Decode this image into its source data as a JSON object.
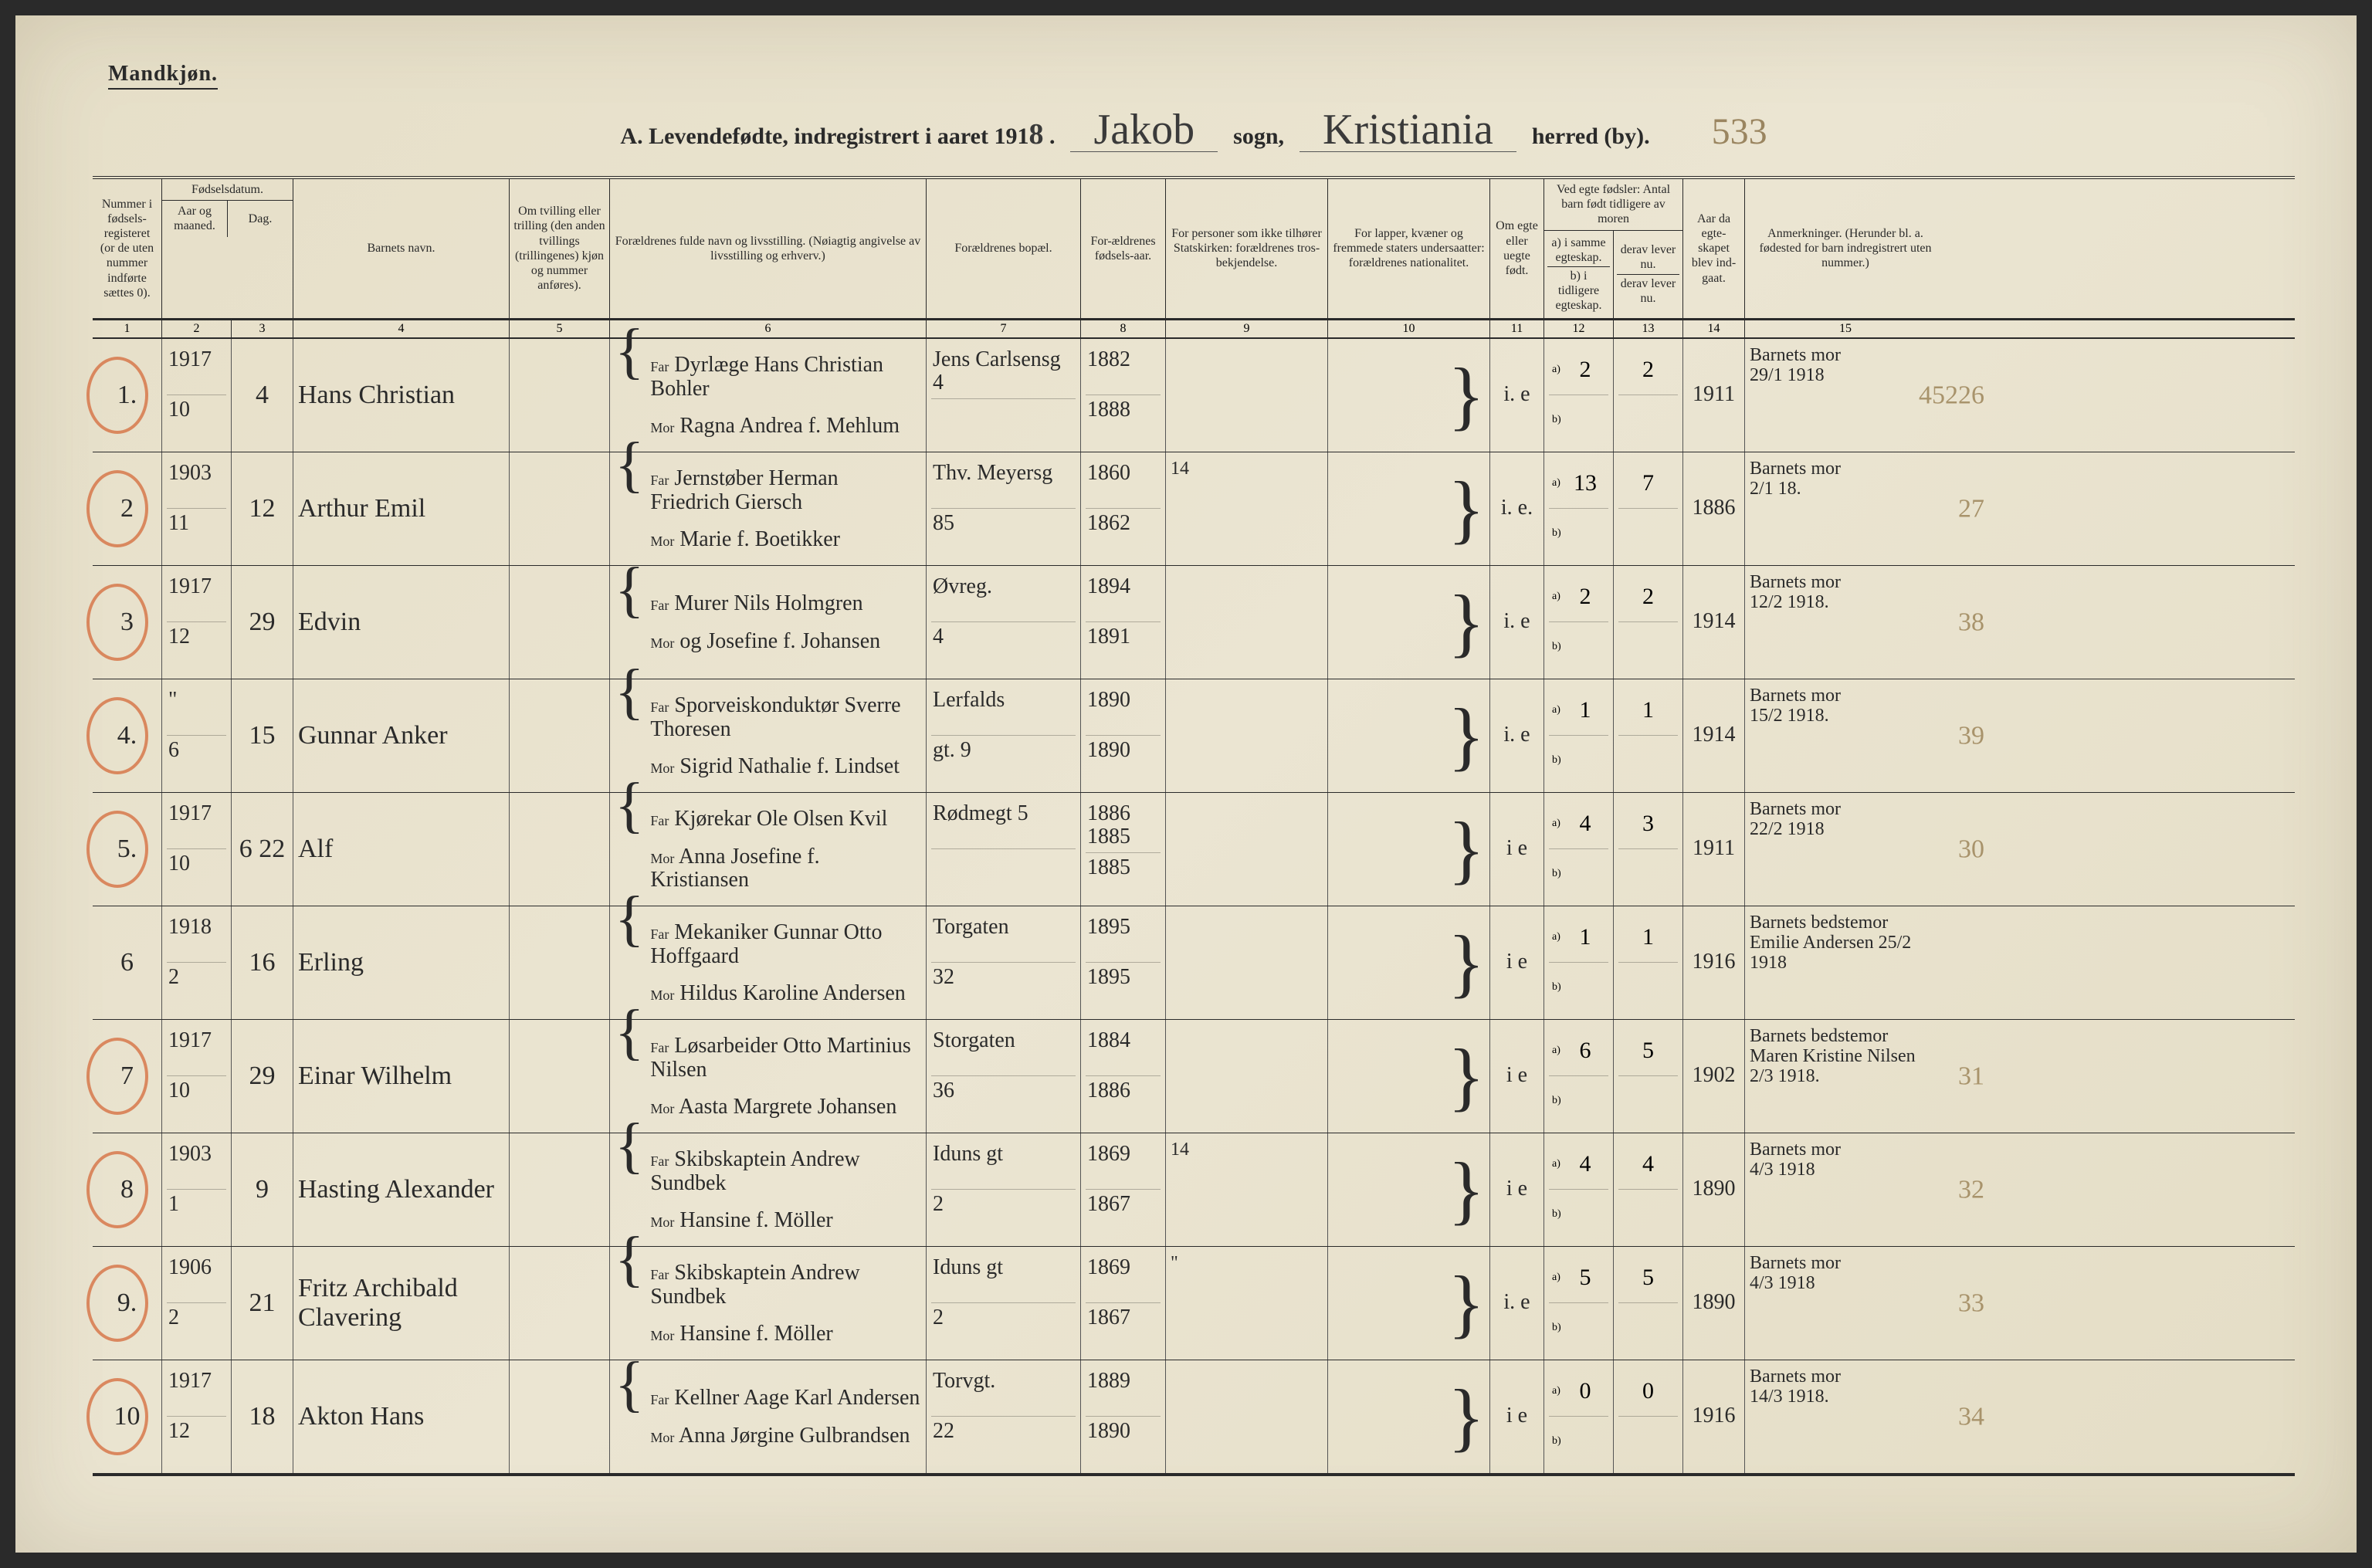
{
  "corner_label": "Mandkjøn.",
  "title": {
    "prefix": "A. Levendefødte, indregistrert i aaret 191",
    "year_suffix": "8",
    "sogn_cursive": "Jakob",
    "sogn_label": "sogn,",
    "herred_cursive": "Kristiania",
    "herred_label": "herred (by).",
    "page_num": "533"
  },
  "colors": {
    "paper": "#e8e2cf",
    "ink": "#2a2a2a",
    "red_circle": "#d46a3a",
    "faded": "#a8936b"
  },
  "headers": {
    "c1": "Nummer i fødsels-registeret (or de uten nummer indførte sættes 0).",
    "c2_group": "Fødselsdatum.",
    "c2a": "Aar og maaned.",
    "c2b": "Dag.",
    "c4": "Barnets navn.",
    "c5": "Om tvilling eller trilling (den anden tvillings (trillingenes) kjøn og nummer anføres).",
    "c6": "Forældrenes fulde navn og livsstilling. (Nøiagtig angivelse av livsstilling og erhverv.)",
    "c7": "Forældrenes bopæl.",
    "c8": "For-ældrenes fødsels-aar.",
    "c9": "For personer som ikke tilhører Statskirken: forældrenes tros-bekjendelse.",
    "c10": "For lapper, kvæner og fremmede staters undersaatter: forældrenes nationalitet.",
    "c11": "Om egte eller uegte født.",
    "c12_group": "Ved egte fødsler: Antal barn født tidligere av moren",
    "c12a": "a) i samme egteskap.",
    "c12b": "b) i tidligere egteskap.",
    "c13a": "derav lever nu.",
    "c13b": "derav lever nu.",
    "c14": "Aar da egte-skapet blev ind-gaat.",
    "c15": "Anmerkninger. (Herunder bl. a. fødested for barn indregistrert uten nummer.)"
  },
  "colnums": [
    "1",
    "2",
    "3",
    "4",
    "5",
    "6",
    "7",
    "8",
    "9",
    "10",
    "11",
    "12",
    "13",
    "14",
    "15"
  ],
  "rows": [
    {
      "num": "1.",
      "circled": true,
      "year_month": [
        "1917",
        "10"
      ],
      "day": "4",
      "name": "Hans Christian",
      "twin": "",
      "far": "Dyrlæge Hans Christian Bohler",
      "mor": "Ragna Andrea f. Mehlum",
      "bopael": [
        "Jens Carlsensg 4",
        ""
      ],
      "birth_years": [
        "1882",
        "1888"
      ],
      "c9": "",
      "c10": "",
      "egte": "i. e",
      "a12": "2",
      "a13": "2",
      "b12": "",
      "b13": "",
      "c14": "1911",
      "remarks": [
        "Barnets mor",
        "29/1 1918"
      ],
      "margin": "45226"
    },
    {
      "num": "2",
      "circled": true,
      "year_month": [
        "1903",
        "11"
      ],
      "day": "12",
      "name": "Arthur Emil",
      "twin": "",
      "far": "Jernstøber Herman Friedrich Giersch",
      "mor": "Marie f. Boetikker",
      "bopael": [
        "Thv. Meyersg",
        "85"
      ],
      "birth_years": [
        "1860",
        "1862"
      ],
      "c9": "14",
      "c10": "",
      "egte": "i. e.",
      "a12": "13",
      "a13": "7",
      "b12": "",
      "b13": "",
      "c14": "1886",
      "remarks": [
        "Barnets mor",
        "2/1 18."
      ],
      "margin": "27"
    },
    {
      "num": "3",
      "circled": true,
      "year_month": [
        "1917",
        "12"
      ],
      "day": "29",
      "name": "Edvin",
      "twin": "",
      "far": "Murer Nils Holmgren",
      "mor": "og Josefine f. Johansen",
      "bopael": [
        "Øvreg.",
        "4"
      ],
      "birth_years": [
        "1894",
        "1891"
      ],
      "c9": "",
      "c10": "",
      "egte": "i. e",
      "a12": "2",
      "a13": "2",
      "b12": "",
      "b13": "",
      "c14": "1914",
      "remarks": [
        "Barnets mor",
        "12/2 1918."
      ],
      "margin": "38"
    },
    {
      "num": "4.",
      "circled": true,
      "year_month": [
        "\"",
        "6"
      ],
      "day": "15",
      "name": "Gunnar Anker",
      "twin": "",
      "far": "Sporveiskonduktør Sverre Thoresen",
      "mor": "Sigrid Nathalie f. Lindset",
      "bopael": [
        "Lerfalds",
        "gt. 9"
      ],
      "birth_years": [
        "1890",
        "1890"
      ],
      "c9": "",
      "c10": "",
      "egte": "i. e",
      "a12": "1",
      "a13": "1",
      "b12": "",
      "b13": "",
      "c14": "1914",
      "remarks": [
        "Barnets mor",
        "15/2 1918."
      ],
      "margin": "39"
    },
    {
      "num": "5.",
      "circled": true,
      "year_month": [
        "1917",
        "10"
      ],
      "day": "6 22",
      "name": "Alf",
      "twin": "",
      "far": "Kjørekar Ole Olsen Kvil",
      "mor": "Anna Josefine f. Kristiansen",
      "bopael": [
        "Rødmegt 5",
        ""
      ],
      "birth_years": [
        "1886 1885",
        "1885"
      ],
      "c9": "",
      "c10": "",
      "egte": "i e",
      "a12": "4",
      "a13": "3",
      "b12": "",
      "b13": "",
      "c14": "1911",
      "remarks": [
        "Barnets mor",
        "22/2 1918"
      ],
      "margin": "30"
    },
    {
      "num": "6",
      "circled": false,
      "year_month": [
        "1918",
        "2"
      ],
      "day": "16",
      "name": "Erling",
      "twin": "",
      "far": "Mekaniker Gunnar Otto Hoffgaard",
      "mor": "Hildus Karoline Andersen",
      "bopael": [
        "Torgaten",
        "32"
      ],
      "birth_years": [
        "1895",
        "1895"
      ],
      "c9": "",
      "c10": "",
      "egte": "i e",
      "a12": "1",
      "a13": "1",
      "b12": "",
      "b13": "",
      "c14": "1916",
      "remarks": [
        "Barnets bedstemor",
        "Emilie Andersen 25/2 1918"
      ],
      "margin": ""
    },
    {
      "num": "7",
      "circled": true,
      "year_month": [
        "1917",
        "10"
      ],
      "day": "29",
      "name": "Einar Wilhelm",
      "twin": "",
      "far": "Løsarbeider Otto Martinius Nilsen",
      "mor": "Aasta Margrete Johansen",
      "bopael": [
        "Storgaten",
        "36"
      ],
      "birth_years": [
        "1884",
        "1886"
      ],
      "c9": "",
      "c10": "",
      "egte": "i e",
      "a12": "6",
      "a13": "5",
      "b12": "",
      "b13": "",
      "c14": "1902",
      "remarks": [
        "Barnets bedstemor",
        "Maren Kristine Nilsen 2/3 1918."
      ],
      "margin": "31"
    },
    {
      "num": "8",
      "circled": true,
      "year_month": [
        "1903",
        "1"
      ],
      "day": "9",
      "name": "Hasting Alexander",
      "twin": "",
      "far": "Skibskaptein Andrew Sundbek",
      "mor": "Hansine f. Möller",
      "bopael": [
        "Iduns gt",
        "2"
      ],
      "birth_years": [
        "1869",
        "1867"
      ],
      "c9": "14",
      "c10": "",
      "egte": "i e",
      "a12": "4",
      "a13": "4",
      "b12": "",
      "b13": "",
      "c14": "1890",
      "remarks": [
        "Barnets mor",
        "4/3 1918"
      ],
      "margin": "32"
    },
    {
      "num": "9.",
      "circled": true,
      "year_month": [
        "1906",
        "2"
      ],
      "day": "21",
      "name": "Fritz Archibald Clavering",
      "twin": "",
      "far": "Skibskaptein Andrew Sundbek",
      "mor": "Hansine f. Möller",
      "bopael": [
        "Iduns gt",
        "2"
      ],
      "birth_years": [
        "1869",
        "1867"
      ],
      "c9": "\"",
      "c10": "",
      "egte": "i. e",
      "a12": "5",
      "a13": "5",
      "b12": "",
      "b13": "",
      "c14": "1890",
      "remarks": [
        "Barnets mor",
        "4/3 1918"
      ],
      "margin": "33"
    },
    {
      "num": "10",
      "circled": true,
      "year_month": [
        "1917",
        "12"
      ],
      "day": "18",
      "name": "Akton Hans",
      "twin": "",
      "far": "Kellner Aage Karl Andersen",
      "mor": "Anna Jørgine Gulbrandsen",
      "bopael": [
        "Torvgt.",
        "22"
      ],
      "birth_years": [
        "1889",
        "1890"
      ],
      "c9": "",
      "c10": "",
      "egte": "i e",
      "a12": "0",
      "a13": "0",
      "b12": "",
      "b13": "",
      "c14": "1916",
      "remarks": [
        "Barnets mor",
        "14/3 1918."
      ],
      "margin": "34"
    }
  ]
}
